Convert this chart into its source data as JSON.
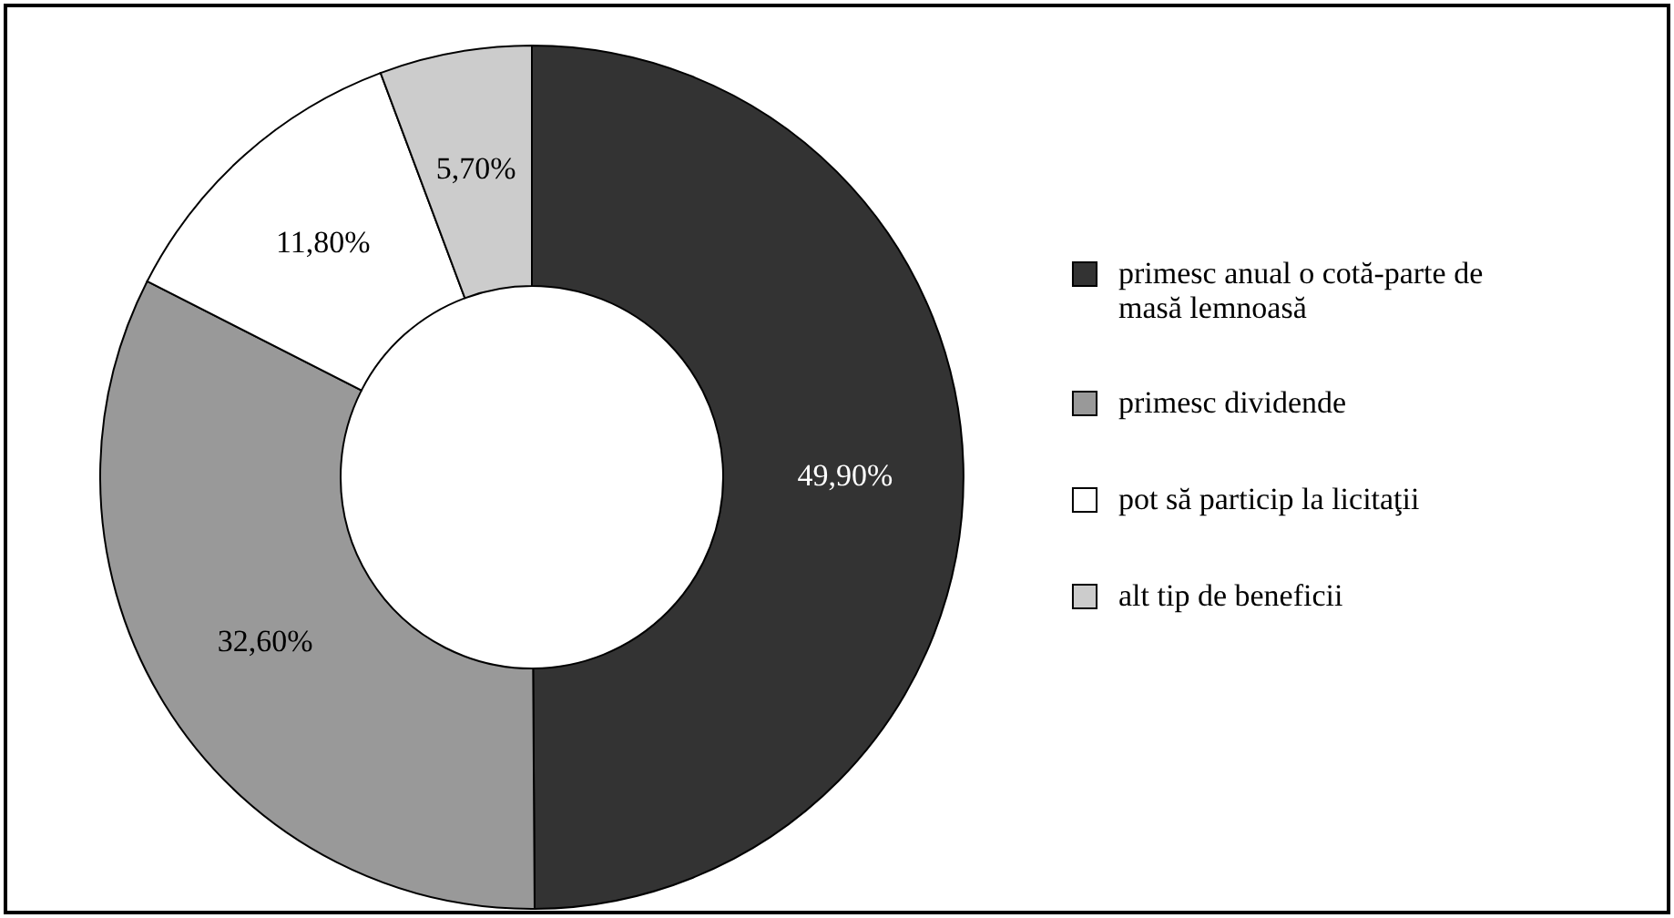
{
  "chart_data": {
    "type": "donut",
    "categories": [
      "primesc anual o cotă-parte de masă lemnoasă",
      "primesc dividende",
      "pot să particip la licitaţii",
      "alt tip de beneficii"
    ],
    "values": [
      49.9,
      32.6,
      11.8,
      5.7
    ],
    "colors": [
      "#333333",
      "#999999",
      "#ffffff",
      "#cccccc"
    ],
    "value_labels": [
      "49,90%",
      "32,60%",
      "11,80%",
      "5,70%"
    ],
    "legend": "right"
  }
}
